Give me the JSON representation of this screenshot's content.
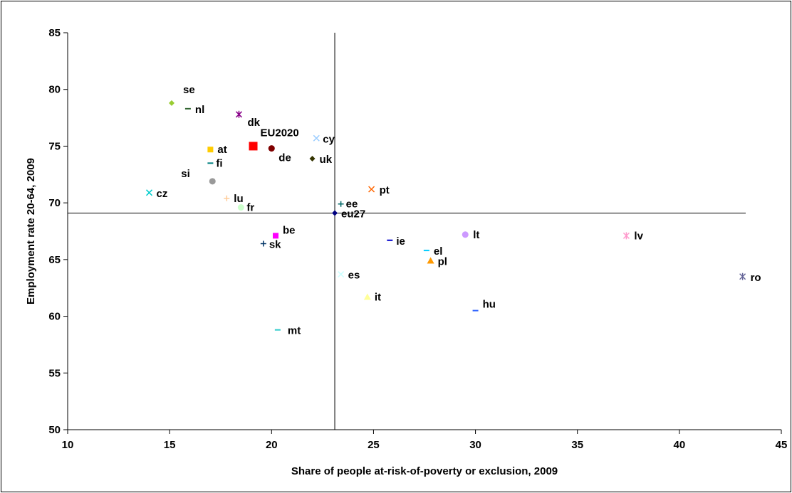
{
  "chart_data": {
    "type": "scatter",
    "title": "",
    "xlabel": "Share of people at-risk-of-poverty or exclusion, 2009",
    "ylabel": "Employment rate 20-64, 2009",
    "xlim": [
      10,
      45
    ],
    "ylim": [
      50,
      85
    ],
    "xticks": [
      "10",
      "15",
      "20",
      "25",
      "30",
      "35",
      "40",
      "45"
    ],
    "yticks": [
      "50",
      "55",
      "60",
      "65",
      "70",
      "75",
      "80",
      "85"
    ],
    "grid": false,
    "legend": "none",
    "reference_lines": {
      "x": 23.1,
      "y": 69.1
    },
    "points": [
      {
        "label": "se",
        "x": 15.1,
        "y": 78.8,
        "marker": "diamond",
        "color": "#99cc33"
      },
      {
        "label": "nl",
        "x": 15.9,
        "y": 78.3,
        "marker": "dash",
        "color": "#336633"
      },
      {
        "label": "dk",
        "x": 18.4,
        "y": 77.8,
        "marker": "asterisk",
        "color": "#880088"
      },
      {
        "label": "EU2020",
        "x": 19.1,
        "y": 75.0,
        "marker": "square",
        "color": "#ff0000"
      },
      {
        "label": "de",
        "x": 20.0,
        "y": 74.8,
        "marker": "circle",
        "color": "#800000"
      },
      {
        "label": "cy",
        "x": 22.2,
        "y": 75.7,
        "marker": "x",
        "color": "#99ccff"
      },
      {
        "label": "at",
        "x": 17.0,
        "y": 74.7,
        "marker": "square",
        "color": "#ffcc00"
      },
      {
        "label": "uk",
        "x": 22.0,
        "y": 73.9,
        "marker": "diamond",
        "color": "#333300"
      },
      {
        "label": "fi",
        "x": 17.0,
        "y": 73.5,
        "marker": "dash",
        "color": "#008080"
      },
      {
        "label": "si",
        "x": 17.1,
        "y": 71.9,
        "marker": "circle",
        "color": "#999999"
      },
      {
        "label": "cz",
        "x": 14.0,
        "y": 70.9,
        "marker": "x",
        "color": "#00cccc"
      },
      {
        "label": "lu",
        "x": 17.8,
        "y": 70.4,
        "marker": "plus",
        "color": "#ffcc99"
      },
      {
        "label": "fr",
        "x": 18.5,
        "y": 69.6,
        "marker": "circle",
        "color": "#ccffcc"
      },
      {
        "label": "pt",
        "x": 24.9,
        "y": 71.2,
        "marker": "x",
        "color": "#ff6600"
      },
      {
        "label": "ee",
        "x": 23.4,
        "y": 69.9,
        "marker": "plus",
        "color": "#006666"
      },
      {
        "label": "eu27",
        "x": 23.1,
        "y": 69.1,
        "marker": "diamond",
        "color": "#000080"
      },
      {
        "label": "be",
        "x": 20.2,
        "y": 67.1,
        "marker": "square",
        "color": "#ff00ff"
      },
      {
        "label": "sk",
        "x": 19.6,
        "y": 66.4,
        "marker": "plus",
        "color": "#003366"
      },
      {
        "label": "lt",
        "x": 29.5,
        "y": 67.2,
        "marker": "circle",
        "color": "#cc99ff"
      },
      {
        "label": "lv",
        "x": 37.4,
        "y": 67.1,
        "marker": "asterisk",
        "color": "#ff99cc"
      },
      {
        "label": "ie",
        "x": 25.8,
        "y": 66.7,
        "marker": "dash",
        "color": "#0000cc"
      },
      {
        "label": "el",
        "x": 27.6,
        "y": 65.8,
        "marker": "dash",
        "color": "#00ccff"
      },
      {
        "label": "pl",
        "x": 27.8,
        "y": 64.9,
        "marker": "triangle",
        "color": "#ff9900"
      },
      {
        "label": "ro",
        "x": 43.1,
        "y": 63.5,
        "marker": "asterisk",
        "color": "#666699"
      },
      {
        "label": "es",
        "x": 23.4,
        "y": 63.7,
        "marker": "x",
        "color": "#ccffff"
      },
      {
        "label": "it",
        "x": 24.7,
        "y": 61.7,
        "marker": "triangle",
        "color": "#ffff99"
      },
      {
        "label": "hu",
        "x": 30.0,
        "y": 60.5,
        "marker": "dash",
        "color": "#3366ff"
      },
      {
        "label": "mt",
        "x": 20.3,
        "y": 58.8,
        "marker": "dash",
        "color": "#33cccc"
      }
    ]
  }
}
